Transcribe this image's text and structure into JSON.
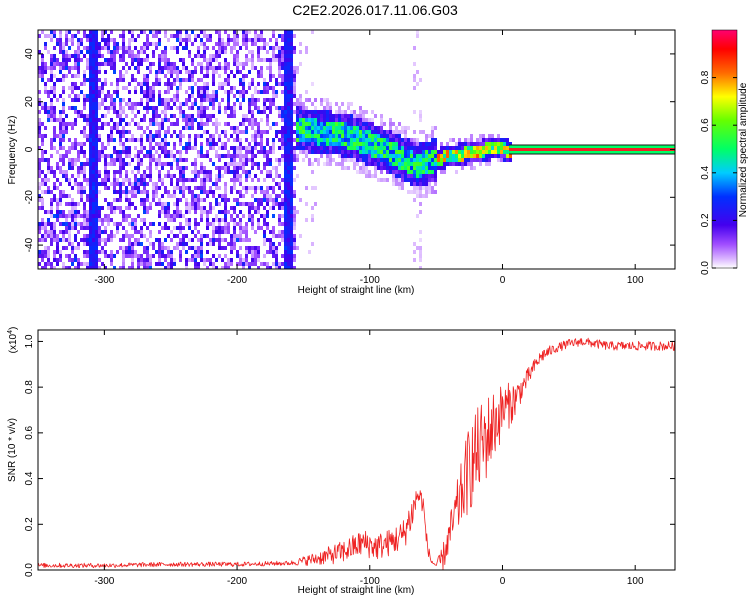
{
  "title": "C2E2.2026.017.11.06.G03",
  "colors": {
    "line": "#ee2222",
    "spec_ridge": "#ee2222",
    "axis": "#000000"
  },
  "chart_data": [
    {
      "type": "heatmap",
      "xlabel": "Height of straight line (km)",
      "ylabel": "Frequency (Hz)",
      "xlim": [
        -350,
        130
      ],
      "ylim": [
        -50,
        50
      ],
      "x_ticks": [
        -300,
        -200,
        -100,
        0,
        100
      ],
      "x_tick_labels": [
        "-300",
        "-200",
        "-100",
        "0",
        "100"
      ],
      "y_ticks": [
        -40,
        -20,
        0,
        20,
        40
      ],
      "y_tick_labels": [
        "-40",
        "-20",
        "0",
        "20",
        "40"
      ],
      "colorbar": {
        "label": "Normalized spectral amplitude",
        "range": [
          0,
          1
        ],
        "ticks": [
          0.0,
          0.2,
          0.4,
          0.6,
          0.8
        ],
        "tick_labels": [
          "0.0",
          "0.2",
          "0.4",
          "0.6",
          "0.8"
        ],
        "stops": [
          "#ffffff",
          "#c080ff",
          "#5500ee",
          "#0000ff",
          "#00d8ff",
          "#00ff40",
          "#ffff00",
          "#ff4000",
          "#ff0066"
        ]
      },
      "ridge": {
        "x": [
          -160,
          -140,
          -120,
          -100,
          -80,
          -65,
          -55,
          -40,
          -20,
          -10,
          0,
          5,
          130
        ],
        "freq": [
          10,
          8,
          7,
          3,
          -2,
          -6,
          -4,
          -2,
          0,
          1,
          1,
          0,
          0
        ]
      }
    },
    {
      "type": "line",
      "xlabel": "Height of straight line (km)",
      "ylabel": "SNR (10 * v/v)",
      "scale_label_prefix": "(x10",
      "scale_label_exp": "4",
      "scale_label_suffix": ")",
      "xlim": [
        -350,
        130
      ],
      "ylim": [
        0,
        1.05
      ],
      "x_ticks": [
        -300,
        -200,
        -100,
        0,
        100
      ],
      "x_tick_labels": [
        "-300",
        "-200",
        "-100",
        "0",
        "100"
      ],
      "y_ticks": [
        0.0,
        0.2,
        0.4,
        0.6,
        0.8,
        1.0
      ],
      "y_tick_labels": [
        "0.0",
        "0.2",
        "0.4",
        "0.6",
        "0.8",
        "1.0"
      ],
      "series": [
        {
          "name": "SNR",
          "x": [
            -350,
            -300,
            -250,
            -200,
            -160,
            -140,
            -120,
            -105,
            -95,
            -85,
            -75,
            -68,
            -64,
            -60,
            -57,
            -54,
            -50,
            -45,
            -40,
            -35,
            -30,
            -25,
            -20,
            -15,
            -10,
            -5,
            0,
            5,
            10,
            15,
            20,
            25,
            30,
            40,
            50,
            60,
            80,
            100,
            130
          ],
          "y": [
            0.02,
            0.02,
            0.025,
            0.025,
            0.03,
            0.05,
            0.08,
            0.12,
            0.1,
            0.12,
            0.15,
            0.25,
            0.33,
            0.3,
            0.12,
            0.04,
            0.02,
            0.05,
            0.15,
            0.25,
            0.35,
            0.45,
            0.5,
            0.55,
            0.6,
            0.65,
            0.7,
            0.72,
            0.75,
            0.8,
            0.85,
            0.9,
            0.94,
            0.97,
            0.99,
            1.0,
            0.98,
            0.98,
            0.98
          ],
          "noise": [
            0.01,
            0.01,
            0.01,
            0.01,
            0.01,
            0.03,
            0.05,
            0.06,
            0.06,
            0.06,
            0.07,
            0.08,
            0.05,
            0.05,
            0.04,
            0.01,
            0.01,
            0.06,
            0.08,
            0.12,
            0.15,
            0.2,
            0.2,
            0.2,
            0.18,
            0.15,
            0.12,
            0.1,
            0.08,
            0.05,
            0.04,
            0.03,
            0.03,
            0.02,
            0.02,
            0.02,
            0.02,
            0.02,
            0.02
          ]
        }
      ]
    }
  ]
}
